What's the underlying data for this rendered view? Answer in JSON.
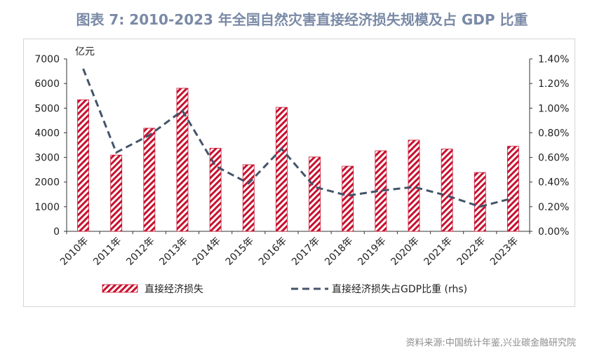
{
  "title": "图表 7:  2010-2023 年全国自然灾害直接经济损失规模及占 GDP 比重",
  "source": "资料来源:中国统计年鉴,兴业碳金融研究院",
  "chart_data": {
    "type": "bar",
    "title": "图表 7:  2010-2023 年全国自然灾害直接经济损失规模及占 GDP 比重",
    "categories": [
      "2010年",
      "2011年",
      "2012年",
      "2013年",
      "2014年",
      "2015年",
      "2016年",
      "2017年",
      "2018年",
      "2019年",
      "2020年",
      "2021年",
      "2022年",
      "2023年"
    ],
    "y_unit_label": "亿元",
    "ylim": [
      0,
      7000
    ],
    "y_ticks": [
      "0",
      "1000",
      "2000",
      "3000",
      "4000",
      "5000",
      "6000",
      "7000"
    ],
    "y2lim": [
      0,
      1.4
    ],
    "y2_ticks": [
      "0.00%",
      "0.20%",
      "0.40%",
      "0.60%",
      "0.80%",
      "1.00%",
      "1.20%",
      "1.40%"
    ],
    "grid": false,
    "legend_position": "bottom",
    "series": [
      {
        "name": "直接经济损失",
        "type": "bar",
        "axis": "left",
        "values": [
          5340,
          3096,
          4185,
          5808,
          3374,
          2704,
          5033,
          3019,
          2645,
          3271,
          3702,
          3340,
          2387,
          3454
        ],
        "color": "#c8102e"
      },
      {
        "name": "直接经济损失占GDP比重 (rhs)",
        "type": "line",
        "axis": "right",
        "style": "dashed",
        "values": [
          1.32,
          0.64,
          0.78,
          0.98,
          0.53,
          0.39,
          0.67,
          0.36,
          0.29,
          0.33,
          0.36,
          0.29,
          0.2,
          0.27
        ],
        "color": "#44546a"
      }
    ]
  }
}
